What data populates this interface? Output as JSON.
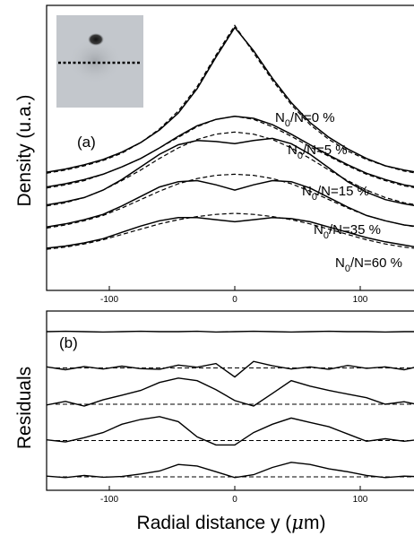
{
  "chart_data": [
    {
      "type": "line",
      "panel_label": "(a)",
      "ylabel": "Density (u.a.)",
      "xlabel": "",
      "xlim": [
        -150,
        150
      ],
      "x_ticks": [
        -100,
        0,
        100
      ],
      "x_tick_labels": [
        "-100",
        "0",
        "100"
      ],
      "inset": "absorption image with dotted horizontal line through cloud center",
      "x": [
        -150,
        -135,
        -120,
        -105,
        -90,
        -75,
        -60,
        -45,
        -30,
        -15,
        0,
        15,
        30,
        45,
        60,
        75,
        90,
        105,
        120,
        135,
        150
      ],
      "series": [
        {
          "name": "N0/N=0 %",
          "label_sub": "0",
          "label_prefix": "N",
          "label_suffix": "/N=0 %",
          "measured": [
            0.57,
            0.6,
            0.64,
            0.69,
            0.76,
            0.85,
            0.97,
            1.13,
            1.36,
            1.66,
            1.94,
            1.72,
            1.46,
            1.23,
            1.04,
            0.9,
            0.79,
            0.7,
            0.63,
            0.59,
            0.56
          ],
          "fit": [
            0.56,
            0.59,
            0.63,
            0.68,
            0.75,
            0.85,
            0.98,
            1.15,
            1.38,
            1.68,
            1.96,
            1.7,
            1.44,
            1.21,
            1.02,
            0.88,
            0.77,
            0.69,
            0.63,
            0.58,
            0.55
          ]
        },
        {
          "name": "N0/N=5 %",
          "label_sub": "0",
          "label_prefix": "N",
          "label_suffix": "/N=5 %",
          "measured": [
            0.43,
            0.46,
            0.5,
            0.55,
            0.62,
            0.7,
            0.8,
            0.91,
            1.01,
            1.07,
            1.1,
            1.08,
            1.02,
            0.93,
            0.83,
            0.73,
            0.64,
            0.56,
            0.5,
            0.45,
            0.42
          ],
          "fit": [
            0.42,
            0.45,
            0.49,
            0.55,
            0.62,
            0.7,
            0.8,
            0.9,
            1.0,
            1.07,
            1.1,
            1.07,
            1.0,
            0.91,
            0.81,
            0.72,
            0.63,
            0.55,
            0.49,
            0.44,
            0.41
          ]
        },
        {
          "name": "N0/N=15 %",
          "label_sub": "0",
          "label_prefix": "N",
          "label_suffix": "/N=15 %",
          "measured": [
            0.26,
            0.29,
            0.33,
            0.4,
            0.5,
            0.62,
            0.74,
            0.83,
            0.87,
            0.86,
            0.84,
            0.87,
            0.89,
            0.84,
            0.74,
            0.61,
            0.48,
            0.38,
            0.31,
            0.27,
            0.24
          ],
          "fit": [
            0.25,
            0.28,
            0.33,
            0.4,
            0.49,
            0.59,
            0.7,
            0.8,
            0.88,
            0.93,
            0.95,
            0.93,
            0.88,
            0.8,
            0.7,
            0.59,
            0.49,
            0.4,
            0.33,
            0.28,
            0.25
          ]
        },
        {
          "name": "N0/N=35 %",
          "label_sub": "0",
          "label_prefix": "N",
          "label_suffix": "/N=35 %",
          "measured": [
            0.05,
            0.08,
            0.12,
            0.17,
            0.25,
            0.34,
            0.43,
            0.48,
            0.49,
            0.45,
            0.4,
            0.45,
            0.49,
            0.48,
            0.42,
            0.33,
            0.24,
            0.16,
            0.11,
            0.07,
            0.05
          ],
          "fit": [
            0.04,
            0.07,
            0.11,
            0.16,
            0.23,
            0.31,
            0.39,
            0.46,
            0.51,
            0.54,
            0.55,
            0.54,
            0.51,
            0.46,
            0.39,
            0.31,
            0.23,
            0.16,
            0.11,
            0.07,
            0.04
          ]
        },
        {
          "name": "N0/N=60 %",
          "label_sub": "0",
          "label_prefix": "N",
          "label_suffix": "/N=60 %",
          "measured": [
            -0.15,
            -0.13,
            -0.1,
            -0.06,
            0.0,
            0.06,
            0.11,
            0.14,
            0.14,
            0.12,
            0.1,
            0.12,
            0.14,
            0.13,
            0.1,
            0.05,
            0.0,
            -0.05,
            -0.09,
            -0.12,
            -0.15
          ],
          "fit": [
            -0.16,
            -0.14,
            -0.11,
            -0.07,
            -0.02,
            0.03,
            0.08,
            0.12,
            0.15,
            0.17,
            0.18,
            0.17,
            0.15,
            0.12,
            0.08,
            0.03,
            -0.02,
            -0.07,
            -0.11,
            -0.14,
            -0.16
          ]
        }
      ]
    },
    {
      "type": "line",
      "panel_label": "(b)",
      "ylabel": "Residuals",
      "xlabel": "Radial distance y (μm)",
      "xlabel_prefix": "Radial distance y (",
      "xlabel_mu": "μ",
      "xlabel_suffix": "m)",
      "xlim": [
        -150,
        150
      ],
      "x_ticks": [
        -100,
        0,
        100
      ],
      "x_tick_labels": [
        "-100",
        "0",
        "100"
      ],
      "x": [
        -150,
        -135,
        -120,
        -105,
        -90,
        -75,
        -60,
        -45,
        -30,
        -15,
        0,
        15,
        30,
        45,
        60,
        75,
        90,
        105,
        120,
        135,
        150
      ],
      "baselines": [
        0,
        -1,
        -2,
        -3,
        -4
      ],
      "series": [
        {
          "values": [
            0.0,
            0.01,
            0.0,
            -0.01,
            0.0,
            0.01,
            0.0,
            0.0,
            0.01,
            -0.01,
            0.0,
            0.01,
            0.0,
            -0.01,
            0.0,
            0.01,
            0.0,
            0.0,
            -0.01,
            0.0,
            0.0
          ]
        },
        {
          "values": [
            -0.97,
            -1.05,
            -0.96,
            -1.03,
            -0.95,
            -1.02,
            -1.04,
            -0.92,
            -0.98,
            -0.88,
            -1.25,
            -0.82,
            -0.94,
            -1.03,
            -0.97,
            -1.04,
            -0.93,
            -1.01,
            -0.97,
            -1.05,
            -0.93
          ]
        },
        {
          "values": [
            -2.02,
            -1.92,
            -2.05,
            -1.88,
            -1.75,
            -1.62,
            -1.4,
            -1.28,
            -1.35,
            -1.6,
            -1.9,
            -2.05,
            -1.7,
            -1.35,
            -1.5,
            -1.62,
            -1.72,
            -1.82,
            -2.0,
            -1.93,
            -2.04
          ]
        },
        {
          "values": [
            -2.98,
            -3.04,
            -2.92,
            -2.78,
            -2.55,
            -2.42,
            -2.34,
            -2.48,
            -2.9,
            -3.12,
            -3.12,
            -2.78,
            -2.55,
            -2.38,
            -2.5,
            -2.62,
            -2.82,
            -3.02,
            -2.95,
            -3.02,
            -2.96
          ]
        },
        {
          "values": [
            -3.98,
            -4.02,
            -3.96,
            -4.01,
            -3.99,
            -3.92,
            -3.84,
            -3.66,
            -3.7,
            -3.86,
            -4.02,
            -3.94,
            -3.74,
            -3.6,
            -3.66,
            -3.78,
            -3.86,
            -3.96,
            -4.02,
            -3.98,
            -4.0
          ]
        }
      ]
    }
  ]
}
